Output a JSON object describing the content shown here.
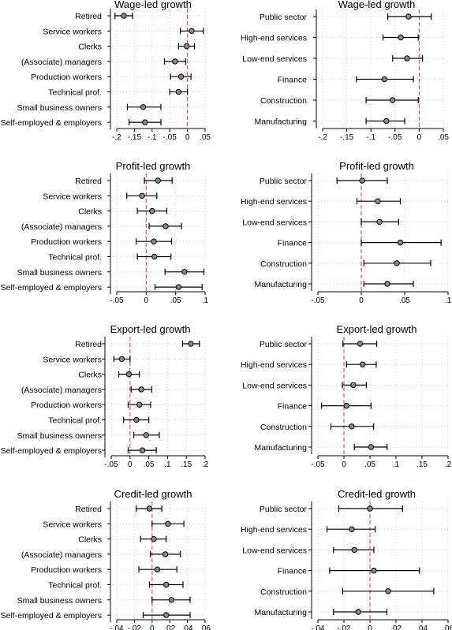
{
  "chart_data": [
    {
      "type": "scatter",
      "subtype": "coefficient-plot",
      "title": "Wage-led growth",
      "categories": [
        "Retired",
        "Service workers",
        "Clerks",
        "(Associate) managers",
        "Production workers",
        "Technical prof.",
        "Small business owners",
        "Self-employed & employers"
      ],
      "estimates": [
        -0.18,
        0.012,
        -0.002,
        -0.035,
        -0.018,
        -0.025,
        -0.125,
        -0.12
      ],
      "ci_low": [
        -0.205,
        -0.02,
        -0.025,
        -0.065,
        -0.048,
        -0.05,
        -0.17,
        -0.165
      ],
      "ci_high": [
        -0.155,
        0.045,
        0.02,
        -0.005,
        0.01,
        0.0,
        -0.075,
        -0.075
      ],
      "xlim": [
        -0.2,
        0.05
      ],
      "xticks": [
        -0.2,
        -0.15,
        -0.1,
        -0.05,
        0,
        0.05
      ],
      "xtick_labels": [
        "-.2",
        "-.15",
        "-.1",
        "-.05",
        "0",
        ".05"
      ],
      "reference_line": 0,
      "grid": true
    },
    {
      "type": "scatter",
      "subtype": "coefficient-plot",
      "title": "Wage-led growth",
      "categories": [
        "Public sector",
        "High-end services",
        "Low-end services",
        "Finance",
        "Construction",
        "Manufacturing"
      ],
      "estimates": [
        -0.022,
        -0.038,
        -0.025,
        -0.072,
        -0.055,
        -0.068
      ],
      "ci_low": [
        -0.065,
        -0.075,
        -0.055,
        -0.13,
        -0.11,
        -0.11
      ],
      "ci_high": [
        0.025,
        -0.002,
        0.007,
        -0.012,
        -0.002,
        -0.03
      ],
      "xlim": [
        -0.2,
        0.05
      ],
      "xticks": [
        -0.2,
        -0.15,
        -0.1,
        -0.05,
        0,
        0.05
      ],
      "xtick_labels": [
        "-.2",
        "-.15",
        "-.1",
        "-.05",
        "0",
        ".05"
      ],
      "reference_line": 0,
      "grid": true
    },
    {
      "type": "scatter",
      "subtype": "coefficient-plot",
      "title": "Profit-led growth",
      "categories": [
        "Retired",
        "Service workers",
        "Clerks",
        "(Associate) managers",
        "Production workers",
        "Technical prof.",
        "Small business owners",
        "Self-employed & employers"
      ],
      "estimates": [
        0.02,
        -0.007,
        0.01,
        0.033,
        0.013,
        0.014,
        0.065,
        0.055
      ],
      "ci_low": [
        -0.003,
        -0.033,
        -0.015,
        0.005,
        -0.017,
        -0.015,
        0.032,
        0.015
      ],
      "ci_high": [
        0.044,
        0.018,
        0.035,
        0.06,
        0.043,
        0.042,
        0.098,
        0.095
      ],
      "xlim": [
        -0.05,
        0.1
      ],
      "xticks": [
        -0.05,
        0,
        0.05,
        0.1
      ],
      "xtick_labels": [
        "-.05",
        "0",
        ".05",
        ".1"
      ],
      "reference_line": 0,
      "grid": true
    },
    {
      "type": "scatter",
      "subtype": "coefficient-plot",
      "title": "Profit-led growth",
      "categories": [
        "Public sector",
        "High-end services",
        "Low-end services",
        "Finance",
        "Construction",
        "Manufacturing"
      ],
      "estimates": [
        0.001,
        0.019,
        0.021,
        0.045,
        0.041,
        0.03
      ],
      "ci_low": [
        -0.028,
        -0.005,
        0.0,
        0.0,
        0.003,
        0.003
      ],
      "ci_high": [
        0.03,
        0.045,
        0.043,
        0.092,
        0.08,
        0.06
      ],
      "xlim": [
        -0.05,
        0.1
      ],
      "xticks": [
        -0.05,
        0,
        0.05,
        0.1
      ],
      "xtick_labels": [
        "-.05",
        "0",
        ".05",
        ".1"
      ],
      "reference_line": 0,
      "grid": true
    },
    {
      "type": "scatter",
      "subtype": "coefficient-plot",
      "title": "Export-led growth",
      "categories": [
        "Retired",
        "Service workers",
        "Clerks",
        "(Associate) managers",
        "Production workers",
        "Technical prof.",
        "Small business owners",
        "Self-employed & employers"
      ],
      "estimates": [
        0.162,
        -0.022,
        -0.003,
        0.03,
        0.025,
        0.017,
        0.043,
        0.033
      ],
      "ci_low": [
        0.14,
        -0.043,
        -0.03,
        0.003,
        -0.005,
        -0.017,
        0.01,
        -0.005
      ],
      "ci_high": [
        0.185,
        0.0,
        0.025,
        0.058,
        0.055,
        0.05,
        0.078,
        0.07
      ],
      "xlim": [
        -0.05,
        0.2
      ],
      "xticks": [
        -0.05,
        0,
        0.05,
        0.1,
        0.15,
        0.2
      ],
      "xtick_labels": [
        "-.05",
        "0",
        ".05",
        ".1",
        ".15",
        ".2"
      ],
      "reference_line": 0,
      "grid": true
    },
    {
      "type": "scatter",
      "subtype": "coefficient-plot",
      "title": "Export-led growth",
      "categories": [
        "Public sector",
        "High-end services",
        "Low-end services",
        "Finance",
        "Construction",
        "Manufacturing"
      ],
      "estimates": [
        0.031,
        0.036,
        0.018,
        0.005,
        0.015,
        0.052
      ],
      "ci_low": [
        -0.002,
        0.005,
        -0.003,
        -0.043,
        -0.025,
        0.02
      ],
      "ci_high": [
        0.063,
        0.062,
        0.043,
        0.052,
        0.057,
        0.083
      ],
      "xlim": [
        -0.05,
        0.2
      ],
      "xticks": [
        -0.05,
        0,
        0.05,
        0.1,
        0.15,
        0.2
      ],
      "xtick_labels": [
        "-.05",
        "0",
        ".05",
        ".1",
        ".15",
        ".2"
      ],
      "reference_line": 0,
      "grid": true
    },
    {
      "type": "scatter",
      "subtype": "coefficient-plot",
      "title": "Credit-led growth",
      "categories": [
        "Retired",
        "Service workers",
        "Clerks",
        "(Associate) managers",
        "Production workers",
        "Technical prof.",
        "Small business owners",
        "Self-employed & employers"
      ],
      "estimates": [
        -0.003,
        0.018,
        0.002,
        0.015,
        0.006,
        0.016,
        0.022,
        0.016
      ],
      "ci_low": [
        -0.018,
        0.0,
        -0.013,
        -0.002,
        -0.015,
        -0.003,
        0.0,
        -0.01
      ],
      "ci_high": [
        0.011,
        0.036,
        0.016,
        0.032,
        0.028,
        0.035,
        0.043,
        0.043
      ],
      "xlim": [
        -0.04,
        0.06
      ],
      "xticks": [
        -0.04,
        -0.02,
        0,
        0.02,
        0.04,
        0.06
      ],
      "xtick_labels": [
        "-.04",
        "-.02",
        "0",
        ".02",
        ".04",
        ".06"
      ],
      "reference_line": 0,
      "grid": true
    },
    {
      "type": "scatter",
      "subtype": "coefficient-plot",
      "title": "Credit-led growth",
      "categories": [
        "Public sector",
        "High-end services",
        "Low-end services",
        "Finance",
        "Construction",
        "Manufacturing"
      ],
      "estimates": [
        0.0,
        -0.014,
        -0.012,
        0.003,
        0.014,
        -0.009
      ],
      "ci_low": [
        -0.024,
        -0.033,
        -0.028,
        -0.031,
        -0.021,
        -0.028
      ],
      "ci_high": [
        0.025,
        0.004,
        0.003,
        0.038,
        0.049,
        0.013
      ],
      "xlim": [
        -0.04,
        0.06
      ],
      "xticks": [
        -0.04,
        -0.02,
        0,
        0.02,
        0.04,
        0.06
      ],
      "xtick_labels": [
        "-.04",
        "-.02",
        "0",
        ".02",
        ".04",
        ".06"
      ],
      "reference_line": 0,
      "grid": true
    }
  ],
  "colors": {
    "reference_line": "#d9586c",
    "marker_fill": "#8a8a8a",
    "marker_stroke": "#000000",
    "grid": "#c8c8c8"
  }
}
